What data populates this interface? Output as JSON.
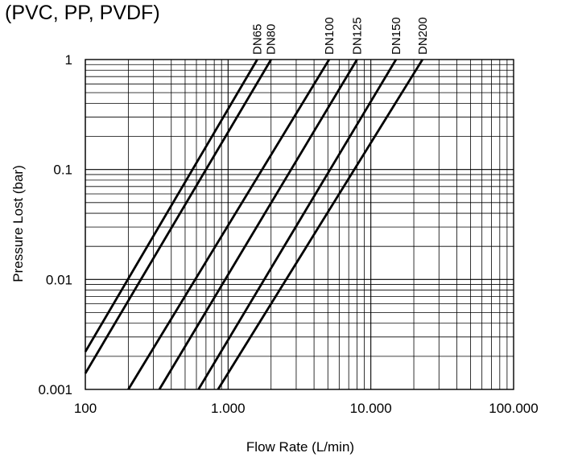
{
  "chart_data": {
    "type": "line",
    "title": "(PVC, PP, PVDF)",
    "xlabel": "Flow Rate (L/min)",
    "ylabel": "Pressure Lost (bar)",
    "x_scale": "log",
    "y_scale": "log",
    "xlim": [
      100,
      100000
    ],
    "ylim": [
      0.001,
      1
    ],
    "grid": true,
    "x_ticks": [
      {
        "value": 100,
        "label": "100"
      },
      {
        "value": 1000,
        "label": "1.000"
      },
      {
        "value": 10000,
        "label": "10.000"
      },
      {
        "value": 100000,
        "label": "100.000"
      }
    ],
    "y_ticks": [
      {
        "value": 1,
        "label": "1"
      },
      {
        "value": 0.1,
        "label": "0.1"
      },
      {
        "value": 0.01,
        "label": "0.01"
      },
      {
        "value": 0.001,
        "label": "0.001"
      }
    ],
    "line_color": "#000000",
    "series": [
      {
        "name": "DN65",
        "x": [
          100,
          1600
        ],
        "y": [
          0.0022,
          1
        ]
      },
      {
        "name": "DN80",
        "x": [
          100,
          2000
        ],
        "y": [
          0.0014,
          1
        ]
      },
      {
        "name": "DN100",
        "x": [
          200,
          5100
        ],
        "y": [
          0.001,
          1
        ]
      },
      {
        "name": "DN125",
        "x": [
          330,
          8000
        ],
        "y": [
          0.001,
          1
        ]
      },
      {
        "name": "DN150",
        "x": [
          620,
          15000
        ],
        "y": [
          0.001,
          1
        ]
      },
      {
        "name": "DN200",
        "x": [
          850,
          23000
        ],
        "y": [
          0.001,
          1
        ]
      }
    ]
  }
}
